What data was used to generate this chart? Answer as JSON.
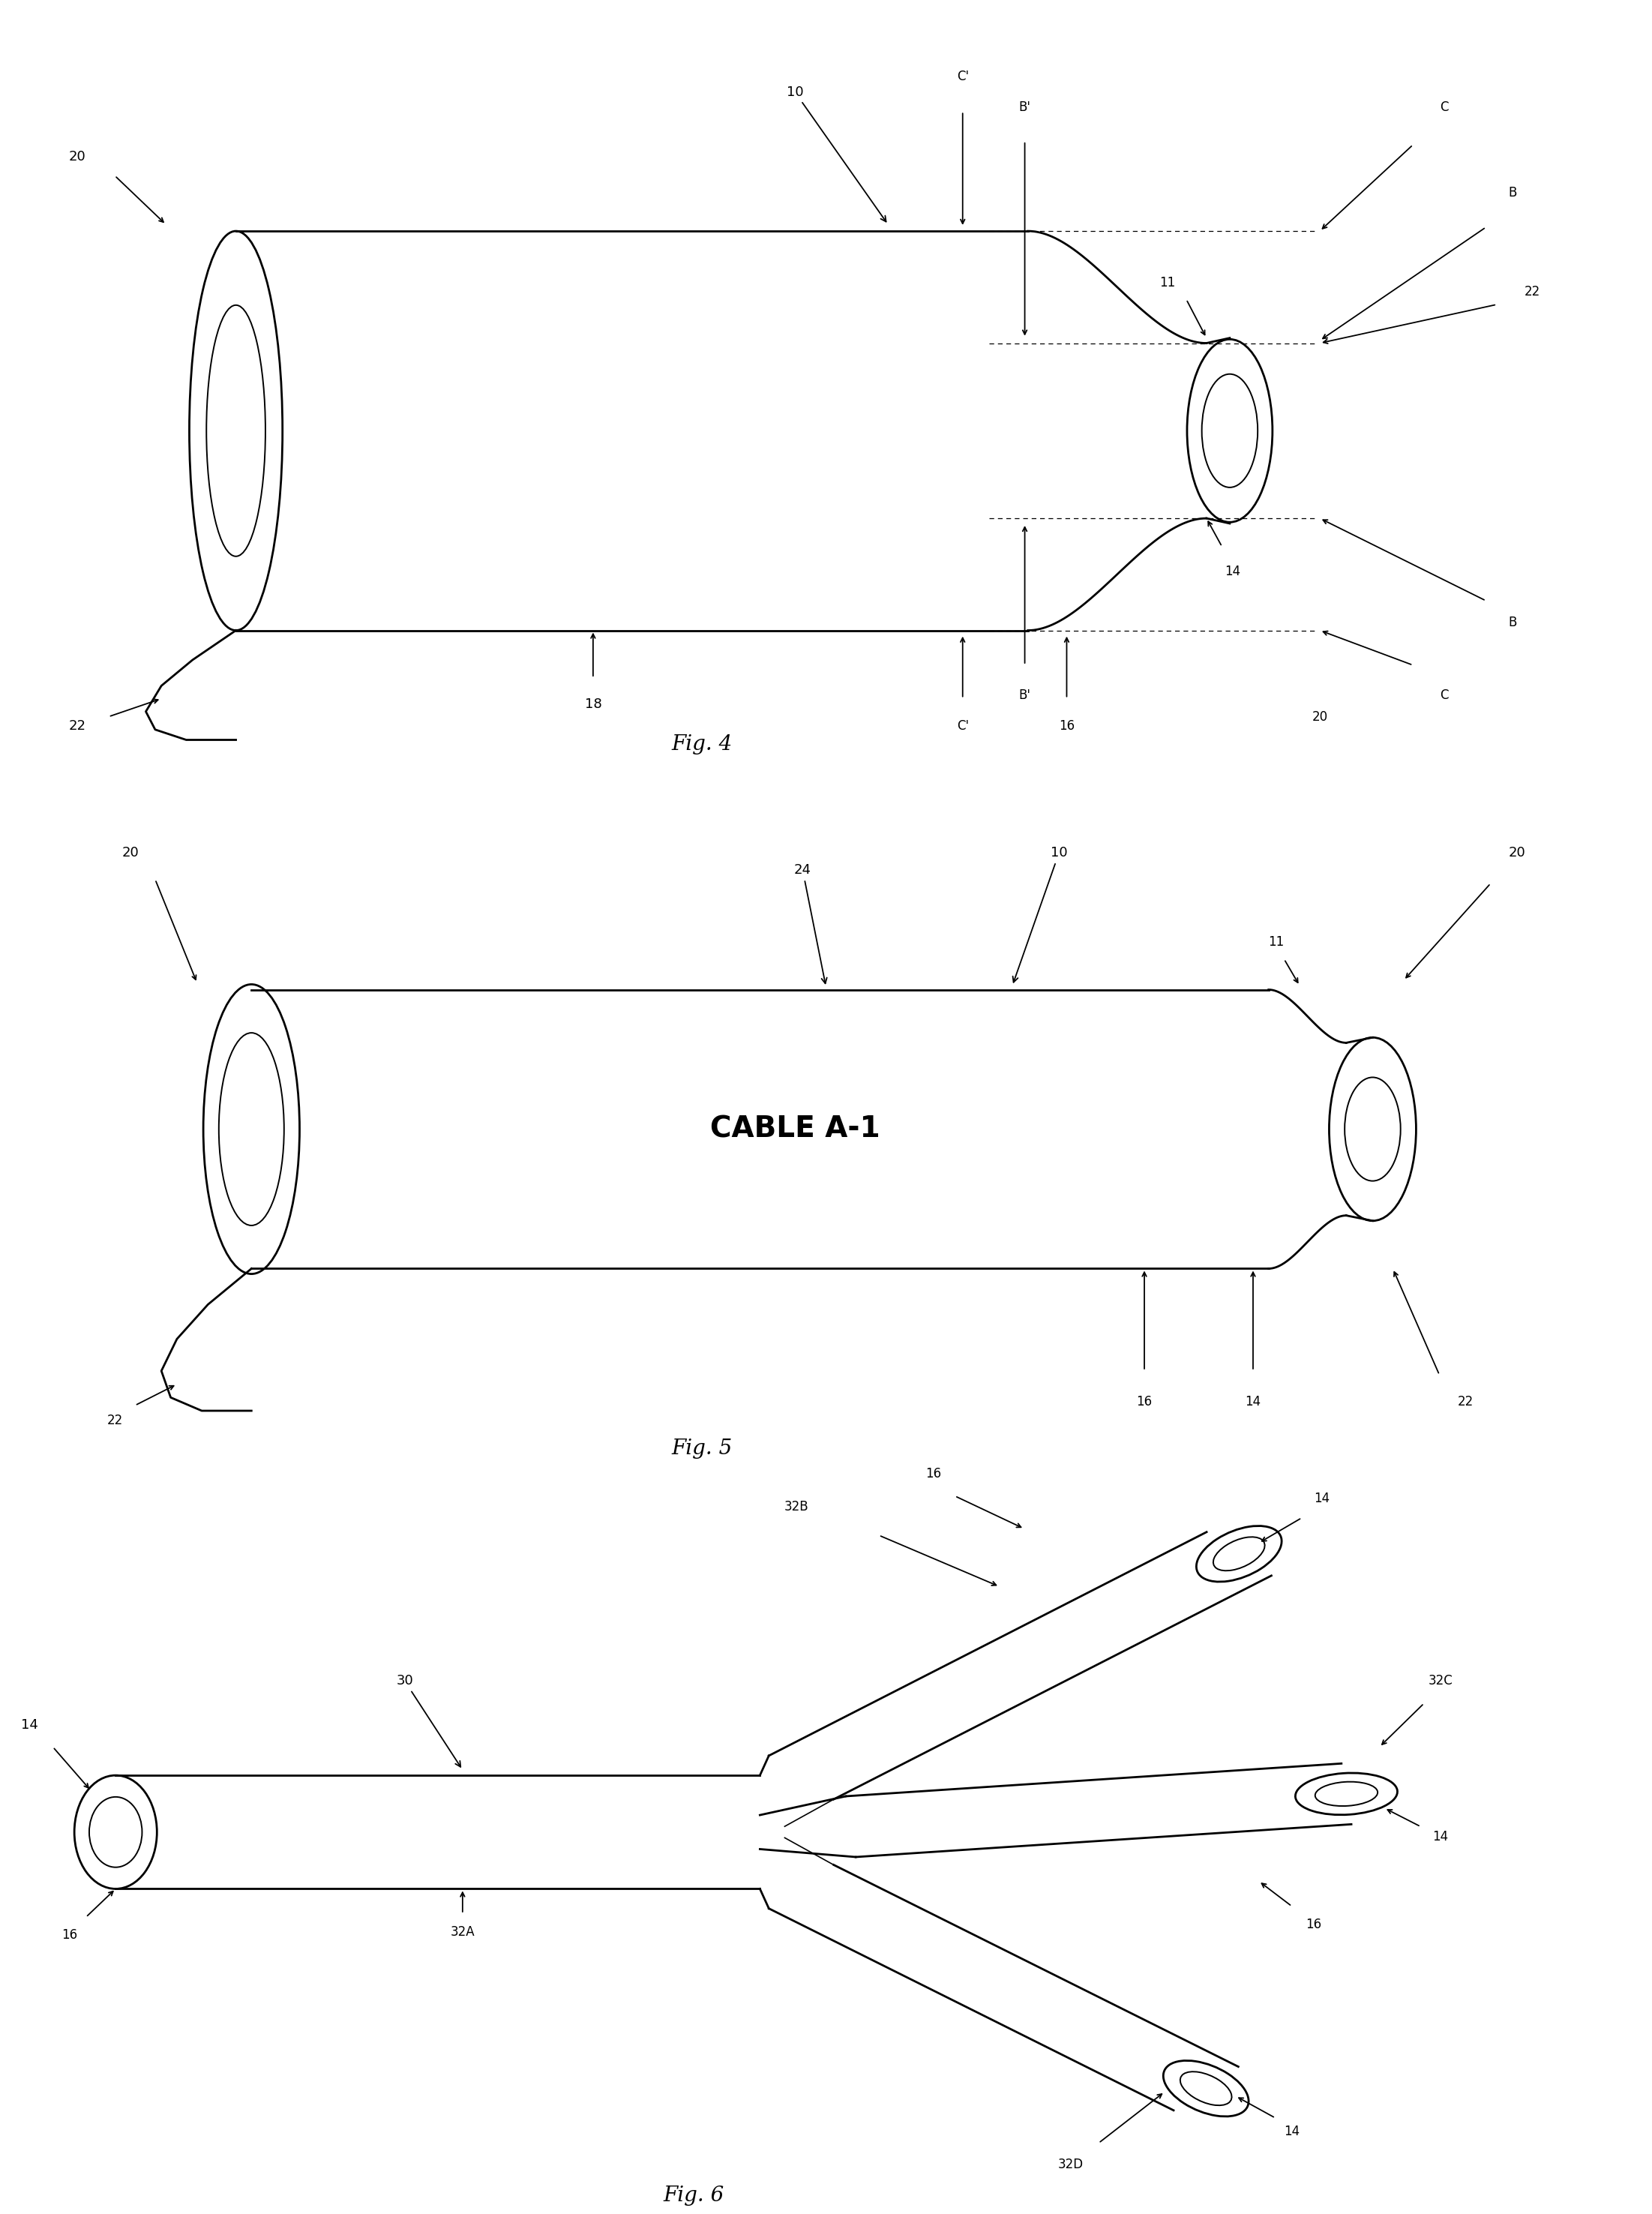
{
  "background_color": "#ffffff",
  "line_color": "#000000",
  "fig4_caption": "Fig. 4",
  "fig5_caption": "Fig. 5",
  "fig6_caption": "Fig. 6",
  "cable_label": "CABLE A-1"
}
